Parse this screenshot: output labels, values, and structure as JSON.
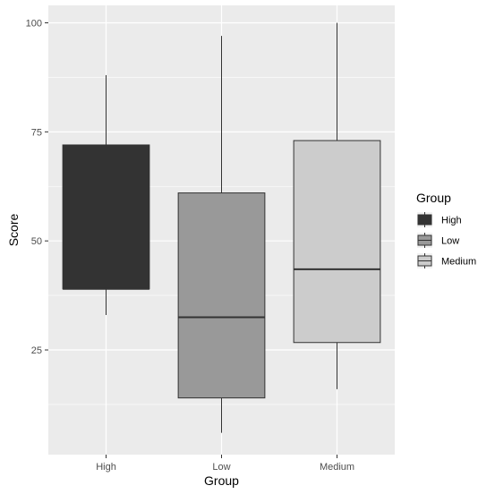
{
  "chart_data": {
    "type": "boxplot",
    "title": "",
    "xlabel": "Group",
    "ylabel": "Score",
    "ylim": [
      1,
      104
    ],
    "yticks": [
      25,
      50,
      75,
      100
    ],
    "categories": [
      "High",
      "Low",
      "Medium"
    ],
    "boxes": [
      {
        "category": "High",
        "min": 33,
        "q1": 39,
        "median": 39,
        "q3": 72,
        "max": 88,
        "fill": "#333333"
      },
      {
        "category": "Low",
        "min": 6,
        "q1": 14,
        "median": 32.5,
        "q3": 61,
        "max": 97,
        "fill": "#999999"
      },
      {
        "category": "Medium",
        "min": 16,
        "q1": 26.7,
        "median": 43.5,
        "q3": 73,
        "max": 100,
        "fill": "#cccccc"
      }
    ],
    "legend": {
      "title": "Group",
      "position": "right",
      "entries": [
        {
          "label": "High",
          "fill": "#333333"
        },
        {
          "label": "Low",
          "fill": "#999999"
        },
        {
          "label": "Medium",
          "fill": "#cccccc"
        }
      ]
    },
    "grid": true,
    "panel_background": "#ebebeb",
    "grid_color": "#ffffff"
  }
}
